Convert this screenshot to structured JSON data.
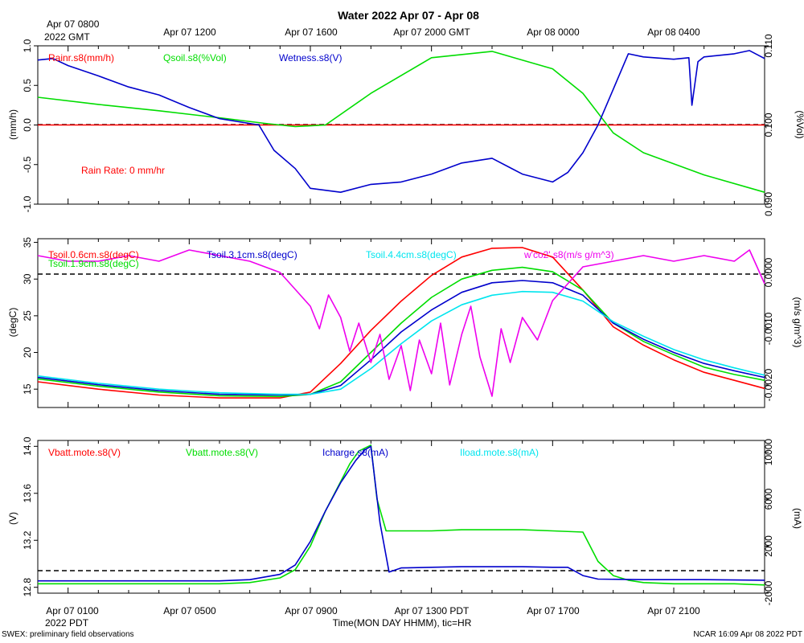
{
  "title": "Water 2022 Apr 07 - Apr 08",
  "top_time_axis": {
    "first_label_line1": "Apr 07 0800",
    "first_label_line2": "2022 GMT",
    "labels": [
      "Apr 07 1200",
      "Apr 07 1600",
      "Apr 07 2000 GMT",
      "Apr 08 0000",
      "Apr 08 0400"
    ]
  },
  "bottom_time_axis": {
    "labels": [
      "Apr 07 0100",
      "Apr 07 0500",
      "Apr 07 0900",
      "Apr 07 1300 PDT",
      "Apr 07 1700",
      "Apr 07 2100"
    ],
    "year_label": "2022 PDT",
    "xlabel": "Time(MON DAY HHMM), tic=HR"
  },
  "footer": {
    "left": "SWEX: preliminary field observations",
    "right": "NCAR 16:09 Apr 08 2022 PDT"
  },
  "chart_data": [
    {
      "type": "line",
      "panel": "rain-soil-moisture",
      "x_hours_pdt": [
        0.0,
        24.0
      ],
      "left_axis": {
        "label": "(mm/h)",
        "ylim": [
          -1.0,
          1.0
        ],
        "ticks": [
          "-1.0",
          "-0.5",
          "0.0",
          "0.5",
          "1.0"
        ]
      },
      "right_axis": {
        "label": "(%Vol)",
        "ylim": [
          0.09,
          0.11
        ],
        "ticks": [
          "0.090",
          "0.100",
          "0.110"
        ]
      },
      "reference_line": 0.0,
      "annotation": "Rain Rate: 0 mm/h",
      "annotation_text": "Rain Rate: 0 mm/hr",
      "series": [
        {
          "name": "Rainr.s8(mm/h)",
          "color": "#ff0000",
          "axis": "left",
          "x": [
            0,
            24
          ],
          "y": [
            0.0,
            0.0
          ]
        },
        {
          "name": "Qsoil.s8(%Vol)",
          "color": "#00dd00",
          "axis": "right",
          "x": [
            0,
            2,
            4,
            6,
            7.5,
            8.5,
            9.5,
            11,
            13,
            15,
            17,
            18,
            19,
            20,
            22,
            24
          ],
          "y": [
            0.1035,
            0.1026,
            0.1018,
            0.1009,
            0.1002,
            0.0998,
            0.1,
            0.104,
            0.1085,
            0.1093,
            0.1071,
            0.104,
            0.099,
            0.0965,
            0.0937,
            0.0915
          ]
        },
        {
          "name": "Wetness.s8(V)",
          "color": "#0000cc",
          "axis": "left",
          "x": [
            0,
            0.5,
            1,
            2,
            3,
            4,
            5,
            6,
            7.3,
            7.8,
            8.5,
            9,
            10,
            11,
            12,
            13,
            14,
            15,
            16,
            17,
            17.5,
            18,
            18.5,
            19,
            19.5,
            20,
            21,
            21.5,
            21.6,
            21.8,
            22,
            23,
            23.5,
            24
          ],
          "y": [
            0.82,
            0.84,
            0.75,
            0.62,
            0.48,
            0.38,
            0.22,
            0.08,
            0.0,
            -0.32,
            -0.55,
            -0.8,
            -0.85,
            -0.75,
            -0.72,
            -0.62,
            -0.48,
            -0.42,
            -0.62,
            -0.72,
            -0.6,
            -0.35,
            0.0,
            0.45,
            0.9,
            0.86,
            0.83,
            0.85,
            0.25,
            0.8,
            0.86,
            0.9,
            0.94,
            0.84
          ]
        }
      ]
    },
    {
      "type": "line",
      "panel": "soil-temperature-flux",
      "x_hours_pdt": [
        0.0,
        24.0
      ],
      "left_axis": {
        "label": "(degC)",
        "ylim": [
          12.5,
          35.5
        ],
        "ticks": [
          "15",
          "20",
          "25",
          "30",
          "35"
        ]
      },
      "right_axis": {
        "label": "(m/s g/m^3)",
        "ylim": [
          -0.0024,
          0.0006
        ],
        "ticks": [
          "-0.0020",
          "-0.0010",
          "0.0000"
        ]
      },
      "reference_line": 0.0,
      "series": [
        {
          "name": "Tsoil.0.6cm.s8(degC)",
          "color": "#ff0000",
          "axis": "left",
          "x": [
            0,
            2,
            4,
            6,
            8,
            9,
            10,
            11,
            12,
            13,
            14,
            15,
            16,
            17,
            18,
            19,
            20,
            21,
            22,
            23,
            24
          ],
          "y": [
            16.0,
            15.0,
            14.2,
            13.8,
            13.8,
            14.6,
            18.5,
            23.0,
            27.0,
            30.5,
            33.0,
            34.2,
            34.3,
            33.0,
            28.5,
            23.5,
            21.0,
            19.0,
            17.3,
            16.2,
            15.1
          ]
        },
        {
          "name": "Tsoil.1.9cm.s8(degC)",
          "color": "#00dd00",
          "axis": "left",
          "x": [
            0,
            2,
            4,
            6,
            8,
            9,
            10,
            11,
            12,
            13,
            14,
            15,
            16,
            17,
            18,
            19,
            20,
            21,
            22,
            23,
            24
          ],
          "y": [
            16.4,
            15.4,
            14.6,
            14.1,
            14.0,
            14.3,
            16.0,
            20.0,
            24.0,
            27.5,
            30.0,
            31.2,
            31.6,
            31.0,
            28.5,
            24.0,
            21.5,
            19.7,
            18.0,
            17.0,
            16.2
          ]
        },
        {
          "name": "Tsoil.3.1cm.s8(degC)",
          "color": "#0000cc",
          "axis": "left",
          "x": [
            0,
            2,
            4,
            6,
            8,
            9,
            10,
            11,
            12,
            13,
            14,
            15,
            16,
            17,
            18,
            19,
            20,
            21,
            22,
            23,
            24
          ],
          "y": [
            16.6,
            15.6,
            14.8,
            14.3,
            14.2,
            14.3,
            15.5,
            19.0,
            22.8,
            25.8,
            28.2,
            29.5,
            29.8,
            29.5,
            27.8,
            24.0,
            21.8,
            20.0,
            18.5,
            17.5,
            16.6
          ]
        },
        {
          "name": "Tsoil.4.4cm.s8(degC)",
          "color": "#00e5ee",
          "axis": "left",
          "x": [
            0,
            2,
            4,
            6,
            8,
            9,
            10,
            11,
            12,
            13,
            14,
            15,
            16,
            17,
            18,
            19,
            20,
            21,
            22,
            23,
            24
          ],
          "y": [
            16.8,
            15.8,
            15.0,
            14.5,
            14.3,
            14.3,
            15.0,
            17.8,
            21.2,
            24.3,
            26.5,
            27.8,
            28.3,
            28.2,
            27.0,
            24.2,
            22.2,
            20.4,
            19.0,
            17.9,
            16.9
          ]
        },
        {
          "name": "w'co2'.s8(m/s g/m^3)",
          "color": "#ee00ee",
          "axis": "right",
          "x": [
            0,
            1,
            2,
            3,
            4,
            5,
            6,
            7,
            7.5,
            8,
            8.5,
            9,
            9.3,
            9.6,
            10,
            10.3,
            10.6,
            11,
            11.3,
            11.6,
            12,
            12.3,
            12.6,
            13,
            13.3,
            13.6,
            14,
            14.3,
            14.6,
            15,
            15.3,
            15.6,
            16,
            16.5,
            17,
            17.5,
            18,
            19,
            20,
            21,
            22,
            23,
            23.5,
            24
          ],
          "y": [
            0.0003,
            0.0002,
            0.0002,
            0.0003,
            0.0002,
            0.0004,
            0.0003,
            0.0002,
            0.0001,
            0.0,
            -0.0003,
            -0.0006,
            -0.001,
            -0.0004,
            -0.0008,
            -0.0014,
            -0.0009,
            -0.0016,
            -0.0011,
            -0.0019,
            -0.0013,
            -0.0021,
            -0.0012,
            -0.0018,
            -0.0009,
            -0.002,
            -0.0011,
            -0.0006,
            -0.0015,
            -0.0022,
            -0.001,
            -0.0016,
            -0.0008,
            -0.0012,
            -0.0005,
            -0.0002,
            0.0001,
            0.0002,
            0.0003,
            0.0002,
            0.0003,
            0.0002,
            0.0004,
            -0.0002
          ]
        }
      ]
    },
    {
      "type": "line",
      "panel": "battery-power",
      "x_hours_pdt": [
        0.0,
        24.0
      ],
      "left_axis": {
        "label": "(V)",
        "ylim": [
          12.75,
          14.05
        ],
        "ticks": [
          "12.8",
          "13.2",
          "13.6",
          "14.0"
        ]
      },
      "right_axis": {
        "label": "(mA)",
        "ylim": [
          -2000,
          11000
        ],
        "ticks": [
          "-2000",
          "2000",
          "6000",
          "10000"
        ]
      },
      "reference_line": 12.9,
      "series": [
        {
          "name": "Vbatt.mote.s8(V)",
          "color": "#ff0000",
          "axis": "left",
          "x": [],
          "y": []
        },
        {
          "name": "Vbatt.mote.s8(V)",
          "color": "#00dd00",
          "axis": "left",
          "x": [
            0,
            1,
            2,
            3,
            4,
            5,
            6,
            7,
            8,
            8.5,
            9,
            9.5,
            10,
            10.3,
            10.6,
            11,
            11.2,
            11.5,
            12,
            13,
            14,
            15,
            16,
            17,
            18,
            18.5,
            19,
            19.5,
            20,
            21,
            22,
            23,
            24
          ],
          "y": [
            12.83,
            12.83,
            12.83,
            12.83,
            12.83,
            12.83,
            12.83,
            12.84,
            12.88,
            12.95,
            13.15,
            13.45,
            13.7,
            13.85,
            13.96,
            14.01,
            13.55,
            13.28,
            13.28,
            13.28,
            13.29,
            13.29,
            13.29,
            13.28,
            13.27,
            13.02,
            12.9,
            12.86,
            12.84,
            12.83,
            12.83,
            12.83,
            12.82
          ]
        },
        {
          "name": "Icharge.s8(mA)",
          "color": "#0000cc",
          "axis": "right",
          "x": [
            0,
            2,
            4,
            6,
            7,
            8,
            8.5,
            9,
            9.5,
            10,
            10.5,
            10.8,
            11.0,
            11.3,
            11.6,
            12,
            13,
            14,
            15,
            16,
            17,
            17.5,
            18,
            18.5,
            20,
            22,
            24
          ],
          "y": [
            -950,
            -950,
            -950,
            -950,
            -850,
            -400,
            400,
            2400,
            5000,
            7400,
            9300,
            10200,
            10500,
            4000,
            -200,
            150,
            200,
            250,
            250,
            250,
            200,
            200,
            -500,
            -800,
            -850,
            -850,
            -900
          ]
        },
        {
          "name": "Iload.mote.s8(mA)",
          "color": "#00e5ee",
          "axis": "right",
          "x": [],
          "y": []
        }
      ]
    }
  ]
}
